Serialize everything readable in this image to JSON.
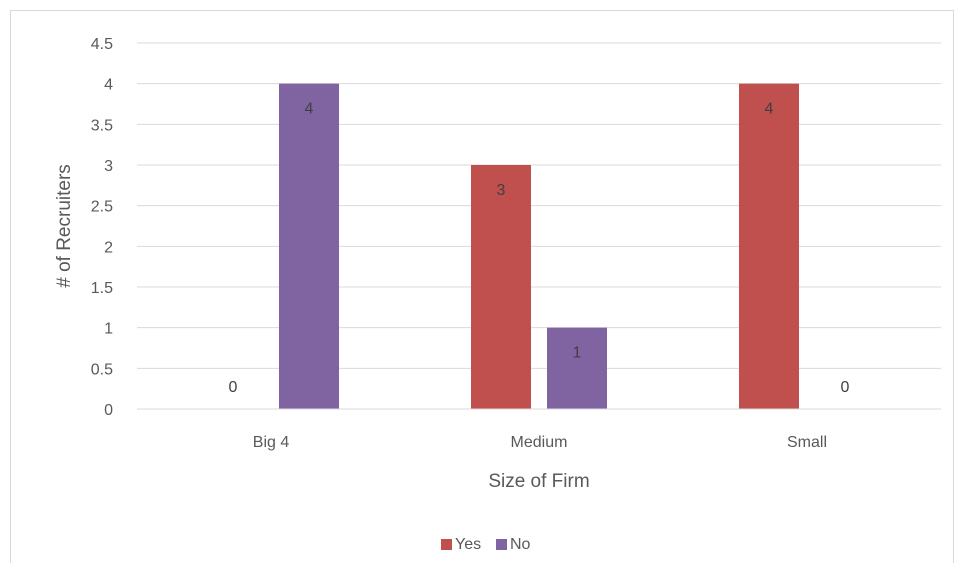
{
  "chart_data": {
    "type": "bar",
    "categories": [
      "Big 4",
      "Medium",
      "Small"
    ],
    "series": [
      {
        "name": "Yes",
        "values": [
          0,
          3,
          4
        ],
        "color": "#C0504D"
      },
      {
        "name": "No",
        "values": [
          4,
          1,
          0
        ],
        "color": "#8064A2"
      }
    ],
    "xlabel": "Size of Firm",
    "ylabel": "# of Recruiters",
    "ylim": [
      0,
      4.5
    ],
    "yticks": [
      "0",
      "0.5",
      "1",
      "1.5",
      "2",
      "2.5",
      "3",
      "3.5",
      "4",
      "4.5"
    ],
    "grid": true,
    "legend_position": "bottom",
    "data_labels": true
  }
}
